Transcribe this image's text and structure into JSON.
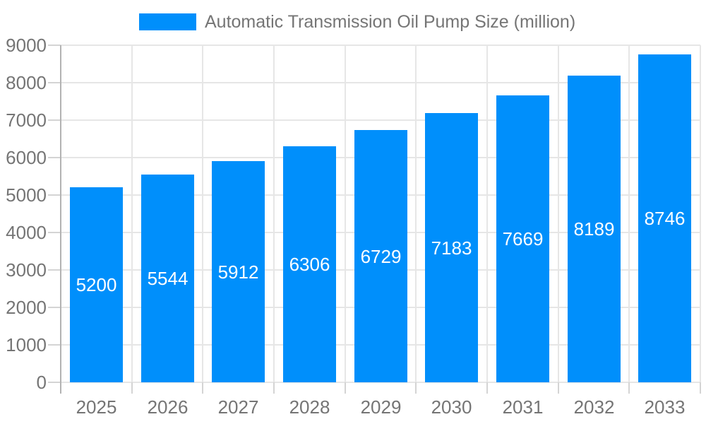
{
  "chart_data": {
    "type": "bar",
    "title": "Automatic Transmission Oil Pump Size (million)",
    "categories": [
      "2025",
      "2026",
      "2027",
      "2028",
      "2029",
      "2030",
      "2031",
      "2032",
      "2033"
    ],
    "values": [
      5200,
      5544,
      5912,
      6306,
      6729,
      7183,
      7669,
      8189,
      8746
    ],
    "xlabel": "",
    "ylabel": "",
    "ylim": [
      0,
      9000
    ],
    "yticks": [
      0,
      1000,
      2000,
      3000,
      4000,
      5000,
      6000,
      7000,
      8000,
      9000
    ],
    "grid": true,
    "legend_position": "top",
    "bar_color": "#008FFB",
    "bar_label_color": "#ffffff",
    "axis_text_color": "#757575",
    "gridline_color": "#e6e6e6",
    "tick_color": "#d4d4d4",
    "axis_line_color": "#b3b3b3"
  }
}
